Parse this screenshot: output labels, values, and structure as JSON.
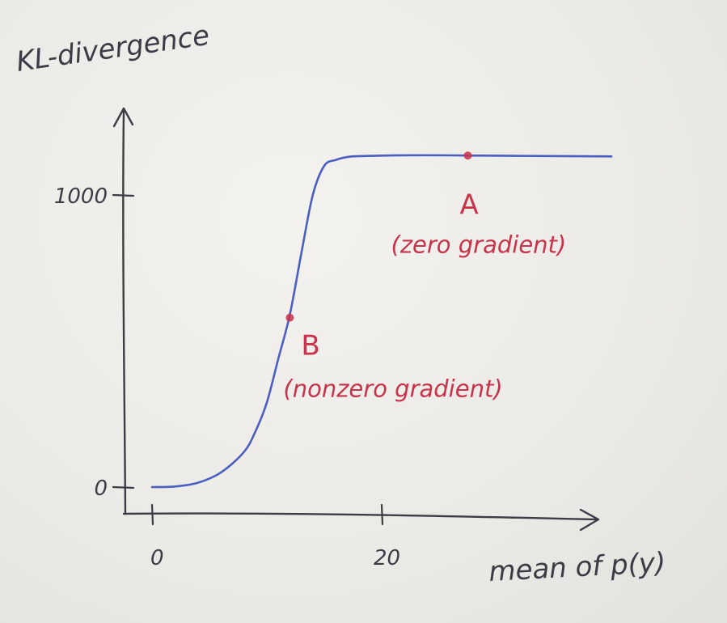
{
  "chart_data": {
    "type": "line",
    "ylabel": "KL-divergence",
    "xlabel": "mean of p(y)",
    "x_ticks": [
      0,
      20
    ],
    "y_ticks": [
      0,
      1000
    ],
    "xlim": [
      -2,
      40
    ],
    "ylim": [
      -30,
      1350
    ],
    "series": [
      {
        "x": [
          0,
          2,
          4,
          6,
          8,
          9,
          10,
          11,
          12,
          13,
          14,
          15,
          16,
          17,
          18,
          20,
          22,
          25,
          28,
          32,
          40
        ],
        "y": [
          0,
          2,
          15,
          50,
          120,
          190,
          290,
          440,
          590,
          800,
          1000,
          1100,
          1120,
          1130,
          1133,
          1135,
          1136,
          1136,
          1135,
          1134,
          1132
        ]
      }
    ],
    "points": [
      {
        "label": "A",
        "note": "(zero gradient)",
        "x": 27.5,
        "y": 1135
      },
      {
        "label": "B",
        "note": "(nonzero gradient)",
        "x": 12,
        "y": 580
      }
    ],
    "colors": {
      "axis": "#3d3b46",
      "curve": "#4a5fc1",
      "annotation": "#c8334a"
    }
  }
}
